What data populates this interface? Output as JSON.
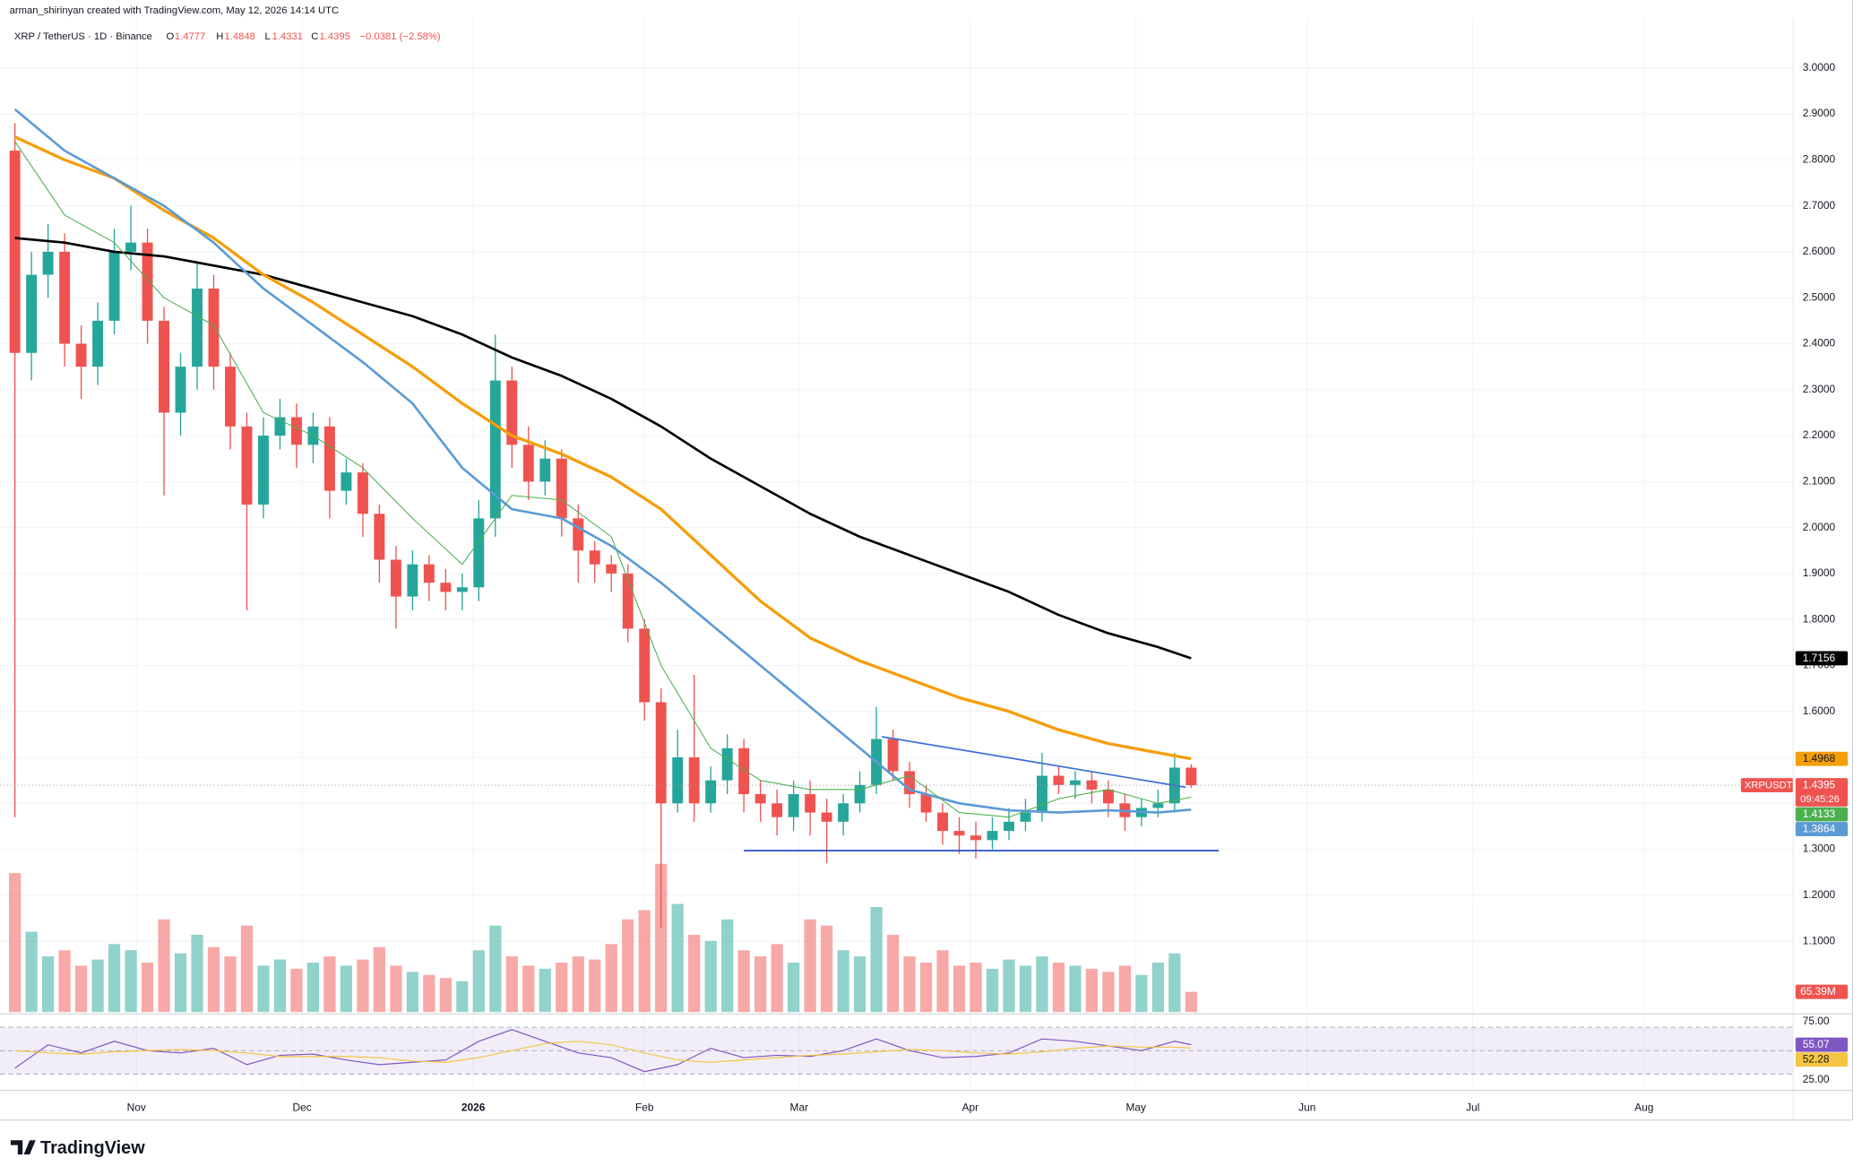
{
  "header": {
    "credit": "arman_shirinyan created with TradingView.com, May 12, 2026 14:14 UTC",
    "symbol": "XRP / TetherUS · 1D · Binance",
    "ohlc_labels": [
      "O",
      "H",
      "L",
      "C"
    ],
    "change": "−0.0381 (−2.58%)",
    "ticker": "XRPUSDT",
    "countdown": "09:45:26",
    "logo": "TradingView"
  },
  "chart_data": [
    {
      "type": "candlestick",
      "x": [
        1,
        4,
        7,
        10,
        13,
        16,
        19,
        22,
        25,
        28,
        31,
        34,
        37,
        40,
        43,
        46,
        49,
        52,
        55,
        58,
        61,
        64,
        67,
        70,
        73,
        76,
        79,
        82,
        85,
        88,
        91,
        94,
        97,
        100,
        103,
        106,
        109,
        112,
        115,
        118,
        121,
        124,
        127,
        130,
        133,
        136,
        139,
        142,
        145,
        148,
        151,
        154,
        157,
        160,
        163,
        166,
        169,
        172,
        175,
        178,
        181,
        184,
        187,
        190,
        193,
        196,
        199,
        202,
        205,
        208,
        211,
        214
      ],
      "open": [
        2.82,
        2.38,
        2.55,
        2.6,
        2.4,
        2.35,
        2.45,
        2.6,
        2.62,
        2.45,
        2.25,
        2.35,
        2.52,
        2.35,
        2.22,
        2.05,
        2.2,
        2.24,
        2.18,
        2.22,
        2.08,
        2.12,
        2.03,
        1.93,
        1.85,
        1.92,
        1.88,
        1.86,
        1.87,
        2.02,
        2.32,
        2.18,
        2.1,
        2.15,
        2.02,
        1.95,
        1.92,
        1.9,
        1.78,
        1.62,
        1.4,
        1.5,
        1.4,
        1.45,
        1.52,
        1.42,
        1.4,
        1.37,
        1.42,
        1.38,
        1.36,
        1.4,
        1.44,
        1.54,
        1.47,
        1.42,
        1.38,
        1.34,
        1.33,
        1.32,
        1.34,
        1.36,
        1.38,
        1.46,
        1.44,
        1.45,
        1.43,
        1.4,
        1.37,
        1.39,
        1.4,
        1.4777
      ],
      "high": [
        2.88,
        2.6,
        2.66,
        2.64,
        2.44,
        2.49,
        2.65,
        2.7,
        2.65,
        2.48,
        2.38,
        2.58,
        2.55,
        2.38,
        2.25,
        2.24,
        2.28,
        2.27,
        2.25,
        2.24,
        2.15,
        2.14,
        2.05,
        1.96,
        1.95,
        1.94,
        1.91,
        1.9,
        2.06,
        2.42,
        2.35,
        2.22,
        2.19,
        2.17,
        2.05,
        1.97,
        1.94,
        1.92,
        1.8,
        1.65,
        1.56,
        1.68,
        1.48,
        1.55,
        1.54,
        1.45,
        1.43,
        1.45,
        1.45,
        1.41,
        1.42,
        1.47,
        1.61,
        1.56,
        1.49,
        1.44,
        1.4,
        1.37,
        1.36,
        1.37,
        1.39,
        1.41,
        1.51,
        1.48,
        1.47,
        1.47,
        1.45,
        1.42,
        1.41,
        1.43,
        1.51,
        1.4848
      ],
      "low": [
        1.37,
        2.32,
        2.5,
        2.35,
        2.28,
        2.31,
        2.42,
        2.56,
        2.4,
        2.07,
        2.2,
        2.3,
        2.3,
        2.17,
        1.82,
        2.02,
        2.17,
        2.13,
        2.14,
        2.02,
        2.05,
        1.98,
        1.88,
        1.78,
        1.82,
        1.84,
        1.82,
        1.82,
        1.84,
        1.98,
        2.13,
        2.06,
        2.07,
        1.98,
        1.88,
        1.88,
        1.86,
        1.75,
        1.58,
        1.13,
        1.38,
        1.36,
        1.38,
        1.42,
        1.38,
        1.36,
        1.33,
        1.34,
        1.33,
        1.27,
        1.33,
        1.38,
        1.42,
        1.45,
        1.39,
        1.36,
        1.31,
        1.29,
        1.28,
        1.3,
        1.32,
        1.34,
        1.36,
        1.42,
        1.41,
        1.4,
        1.37,
        1.34,
        1.35,
        1.37,
        1.38,
        1.4331
      ],
      "close": [
        2.38,
        2.55,
        2.6,
        2.4,
        2.35,
        2.45,
        2.6,
        2.62,
        2.45,
        2.25,
        2.35,
        2.52,
        2.35,
        2.22,
        2.05,
        2.2,
        2.24,
        2.18,
        2.22,
        2.08,
        2.12,
        2.03,
        1.93,
        1.85,
        1.92,
        1.88,
        1.86,
        1.87,
        2.02,
        2.32,
        2.18,
        2.1,
        2.15,
        2.02,
        1.95,
        1.92,
        1.9,
        1.78,
        1.62,
        1.4,
        1.5,
        1.4,
        1.45,
        1.52,
        1.42,
        1.4,
        1.37,
        1.42,
        1.38,
        1.36,
        1.4,
        1.44,
        1.54,
        1.47,
        1.42,
        1.38,
        1.34,
        1.33,
        1.32,
        1.34,
        1.36,
        1.38,
        1.46,
        1.44,
        1.45,
        1.43,
        1.4,
        1.37,
        1.39,
        1.4,
        1.4777,
        1.4395
      ],
      "up_color": "#26a69a",
      "down_color": "#ef5350",
      "series": [
        {
          "color": "#000000",
          "width": 2,
          "x": [
            1,
            10,
            19,
            28,
            37,
            46,
            55,
            64,
            73,
            82,
            91,
            100,
            109,
            118,
            127,
            136,
            145,
            154,
            163,
            172,
            181,
            190,
            199,
            208,
            214
          ],
          "values": [
            2.63,
            2.62,
            2.6,
            2.59,
            2.57,
            2.55,
            2.52,
            2.49,
            2.46,
            2.42,
            2.37,
            2.33,
            2.28,
            2.22,
            2.15,
            2.09,
            2.03,
            1.98,
            1.94,
            1.9,
            1.86,
            1.81,
            1.77,
            1.74,
            1.7156
          ]
        },
        {
          "color": "#f59e0b",
          "width": 2.5,
          "x": [
            1,
            10,
            19,
            28,
            37,
            46,
            55,
            64,
            73,
            82,
            91,
            100,
            109,
            118,
            127,
            136,
            145,
            154,
            163,
            172,
            181,
            190,
            199,
            208,
            214
          ],
          "values": [
            2.85,
            2.8,
            2.76,
            2.69,
            2.63,
            2.55,
            2.49,
            2.42,
            2.35,
            2.27,
            2.2,
            2.16,
            2.11,
            2.04,
            1.94,
            1.84,
            1.76,
            1.71,
            1.67,
            1.63,
            1.6,
            1.56,
            1.53,
            1.51,
            1.4968
          ]
        },
        {
          "color": "#5b9bd5",
          "width": 2,
          "x": [
            1,
            10,
            19,
            28,
            37,
            46,
            55,
            64,
            73,
            82,
            91,
            100,
            109,
            118,
            127,
            136,
            145,
            154,
            163,
            172,
            181,
            190,
            199,
            208,
            214
          ],
          "values": [
            2.91,
            2.82,
            2.76,
            2.7,
            2.62,
            2.52,
            2.44,
            2.36,
            2.27,
            2.13,
            2.04,
            2.02,
            1.96,
            1.88,
            1.79,
            1.7,
            1.61,
            1.52,
            1.43,
            1.4,
            1.385,
            1.38,
            1.385,
            1.38,
            1.3864
          ]
        },
        {
          "color": "#4caf50",
          "width": 0.8,
          "x": [
            1,
            10,
            19,
            28,
            37,
            46,
            55,
            64,
            73,
            82,
            91,
            100,
            109,
            118,
            127,
            136,
            145,
            154,
            163,
            172,
            181,
            190,
            199,
            208,
            214
          ],
          "values": [
            2.84,
            2.68,
            2.62,
            2.5,
            2.44,
            2.25,
            2.2,
            2.13,
            2.02,
            1.92,
            2.07,
            2.06,
            1.98,
            1.7,
            1.52,
            1.45,
            1.43,
            1.43,
            1.46,
            1.38,
            1.37,
            1.41,
            1.43,
            1.4,
            1.4133
          ]
        }
      ],
      "trendlines": [
        {
          "color": "#3d6fd9",
          "x": [
            158,
            213
          ],
          "values": [
            1.545,
            1.435
          ]
        },
        {
          "color": "#2b4fc4",
          "x": [
            133,
            219
          ],
          "values": [
            1.297,
            1.297
          ]
        }
      ],
      "xlim": [
        -1.7,
        323
      ],
      "xticks": [
        {
          "value": 23,
          "label": "Nov"
        },
        {
          "value": 53,
          "label": "Dec"
        },
        {
          "value": 84,
          "label": "2026"
        },
        {
          "value": 115,
          "label": "Feb"
        },
        {
          "value": 143,
          "label": "Mar"
        },
        {
          "value": 174,
          "label": "Apr"
        },
        {
          "value": 204,
          "label": "May"
        },
        {
          "value": 235,
          "label": "Jun"
        },
        {
          "value": 265,
          "label": "Jul"
        },
        {
          "value": 296,
          "label": "Aug"
        }
      ],
      "ylim": [
        0.946,
        3.109
      ],
      "yticks": [
        {
          "value": 1.1,
          "label": "1.1000"
        },
        {
          "value": 1.2,
          "label": "1.2000"
        },
        {
          "value": 1.3,
          "label": "1.3000"
        },
        {
          "value": 1.4,
          "label": "1.4000"
        },
        {
          "value": 1.5,
          "label": "1.5000"
        },
        {
          "value": 1.6,
          "label": "1.6000"
        },
        {
          "value": 1.7,
          "label": "1.7000"
        },
        {
          "value": 1.8,
          "label": "1.8000"
        },
        {
          "value": 1.9,
          "label": "1.9000"
        },
        {
          "value": 2,
          "label": "2.0000"
        },
        {
          "value": 2.1,
          "label": "2.1000"
        },
        {
          "value": 2.2,
          "label": "2.2000"
        },
        {
          "value": 2.3,
          "label": "2.3000"
        },
        {
          "value": 2.4,
          "label": "2.4000"
        },
        {
          "value": 2.5,
          "label": "2.5000"
        },
        {
          "value": 2.6,
          "label": "2.6000"
        },
        {
          "value": 2.7,
          "label": "2.7000"
        },
        {
          "value": 2.8,
          "label": "2.8000"
        },
        {
          "value": 2.9,
          "label": "2.9000"
        },
        {
          "value": 3,
          "label": "3.0000"
        }
      ],
      "grid": true
    },
    {
      "type": "bar",
      "values": [
        450,
        260,
        180,
        200,
        150,
        170,
        220,
        200,
        160,
        300,
        190,
        250,
        210,
        180,
        280,
        150,
        170,
        140,
        160,
        180,
        150,
        170,
        210,
        150,
        130,
        120,
        110,
        100,
        200,
        280,
        180,
        150,
        140,
        160,
        180,
        170,
        220,
        300,
        330,
        480,
        350,
        250,
        230,
        300,
        200,
        180,
        220,
        160,
        300,
        280,
        200,
        180,
        340,
        250,
        180,
        160,
        200,
        150,
        160,
        140,
        170,
        150,
        180,
        160,
        150,
        140,
        130,
        150,
        120,
        160,
        190,
        65.39
      ],
      "up_color": "rgba(38,166,154,0.5)",
      "down_color": "rgba(239,83,80,0.5)",
      "ylim": [
        0,
        500
      ],
      "last_value_label": "65.39M"
    },
    {
      "type": "line",
      "x": [
        1,
        7,
        13,
        19,
        25,
        31,
        37,
        43,
        49,
        55,
        61,
        67,
        73,
        79,
        85,
        91,
        97,
        103,
        109,
        115,
        121,
        127,
        133,
        139,
        145,
        151,
        157,
        163,
        169,
        175,
        181,
        187,
        193,
        199,
        205,
        211,
        214
      ],
      "series": [
        {
          "color": "#7e57c2",
          "values": [
            35,
            55,
            48,
            58,
            50,
            48,
            52,
            38,
            46,
            47,
            42,
            38,
            40,
            42,
            58,
            68,
            58,
            48,
            44,
            32,
            38,
            52,
            44,
            46,
            45,
            50,
            60,
            50,
            44,
            45,
            48,
            60,
            58,
            54,
            50,
            58,
            55.07
          ]
        },
        {
          "color": "#f5c542",
          "values": [
            50,
            48,
            47,
            49,
            50,
            51,
            50,
            48,
            45,
            45,
            45,
            44,
            41,
            40,
            44,
            50,
            56,
            58,
            55,
            48,
            42,
            40,
            42,
            44,
            46,
            47,
            49,
            51,
            50,
            48,
            47,
            49,
            52,
            54,
            53,
            53,
            52.28
          ]
        }
      ],
      "ylim": [
        19,
        80
      ],
      "yticks": [
        {
          "value": 75,
          "label": "75.00"
        },
        {
          "value": 25,
          "label": "25.00"
        }
      ],
      "bands": [
        70,
        50,
        30
      ],
      "band_fill": "rgba(126,87,194,0.1)"
    }
  ]
}
